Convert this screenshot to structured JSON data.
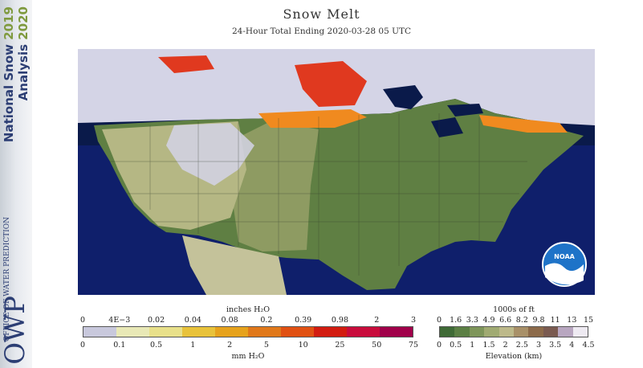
{
  "title": "Snow Melt",
  "subtitle": "24-Hour Total Ending 2020-03-28 05 UTC",
  "sidebar": {
    "line1_text": "National Snow ",
    "line1_year": "2019",
    "line2_text": "Analysis ",
    "line2_year": "2020",
    "owp_small": "OFFICE OF WATER PREDICTION",
    "owp_big": "OWP"
  },
  "logo": {
    "text": "NOAA"
  },
  "colors": {
    "ocean": "#0f1f6b",
    "outside": "#0a1a4a",
    "canada_snow": "#d4d4e6",
    "lowland": "#5f7f43",
    "plains": "#8e9b62",
    "highplains": "#b5b784",
    "melt_high": "#e0391f",
    "melt_mid": "#f08a1f"
  },
  "melt_legend": {
    "top_label": "inches H₂O",
    "bottom_label": "mm H₂O",
    "inch_ticks": [
      "0",
      "4E−3",
      "0.02",
      "0.04",
      "0.08",
      "0.2",
      "0.39",
      "0.98",
      "2",
      "3"
    ],
    "mm_ticks": [
      "0",
      "0.1",
      "0.5",
      "1",
      "2",
      "5",
      "10",
      "25",
      "50",
      "75"
    ],
    "swatches": [
      "#c8c8dc",
      "#e8e8b6",
      "#e8e08a",
      "#e8c23a",
      "#e6a21c",
      "#e0781a",
      "#e05012",
      "#d21c10",
      "#c80c3c",
      "#a0004a"
    ]
  },
  "elev_legend": {
    "top_label": "1000s of ft",
    "bottom_label": "Elevation (km)",
    "ft_ticks": [
      "0",
      "1.6",
      "3.3",
      "4.9",
      "6.6",
      "8.2",
      "9.8",
      "11",
      "13",
      "15"
    ],
    "km_ticks": [
      "0",
      "0.5",
      "1",
      "1.5",
      "2",
      "2.5",
      "3",
      "3.5",
      "4",
      "4.5"
    ],
    "swatches": [
      "#3f6a36",
      "#5b7f44",
      "#7e955a",
      "#a0aa72",
      "#bdb98a",
      "#a89068",
      "#8c6a4a",
      "#7a5a50",
      "#b8a6c0",
      "#eeeaf2"
    ]
  }
}
